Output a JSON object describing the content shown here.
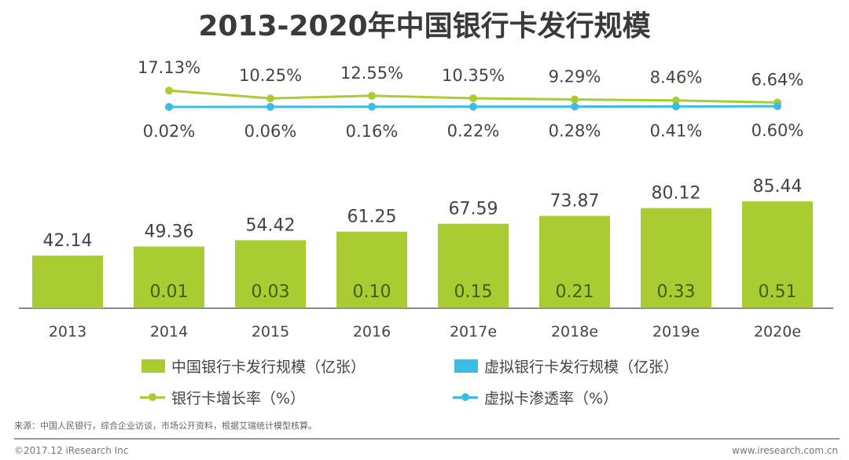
{
  "chart_data": {
    "type": "bar",
    "title": "2013-2020年中国银行卡发行规模",
    "categories": [
      "2013",
      "2014",
      "2015",
      "2016",
      "2017e",
      "2018e",
      "2019e",
      "2020e"
    ],
    "series": [
      {
        "name": "中国银行卡发行规模（亿张）",
        "type": "bar",
        "color": "#a9cc33",
        "values": [
          42.14,
          49.36,
          54.42,
          61.25,
          67.59,
          73.87,
          80.12,
          85.44
        ]
      },
      {
        "name": "虚拟银行卡发行规模（亿张）",
        "type": "bar",
        "color": "#3bbde3",
        "values": [
          null,
          0.01,
          0.03,
          0.1,
          0.15,
          0.21,
          0.33,
          0.51
        ]
      },
      {
        "name": "银行卡增长率（%）",
        "type": "line",
        "color": "#a9cc33",
        "values": [
          17.13,
          10.25,
          12.55,
          10.35,
          9.29,
          8.46,
          6.64
        ],
        "x": [
          "2014",
          "2015",
          "2016",
          "2017e",
          "2018e",
          "2019e",
          "2020e"
        ]
      },
      {
        "name": "虚拟卡渗透率（%）",
        "type": "line",
        "color": "#3bbde3",
        "values": [
          0.02,
          0.06,
          0.16,
          0.22,
          0.28,
          0.41,
          0.6
        ],
        "x": [
          "2014",
          "2015",
          "2016",
          "2017e",
          "2018e",
          "2019e",
          "2020e"
        ]
      }
    ],
    "legend": "bottom",
    "grid": false
  },
  "footer": {
    "source": "来源：中国人民银行，综合企业访谈，市场公开资料，根据艾瑞统计模型核算。",
    "copyright": "©2017.12 iResearch Inc",
    "website": "www.iresearch.com.cn"
  }
}
